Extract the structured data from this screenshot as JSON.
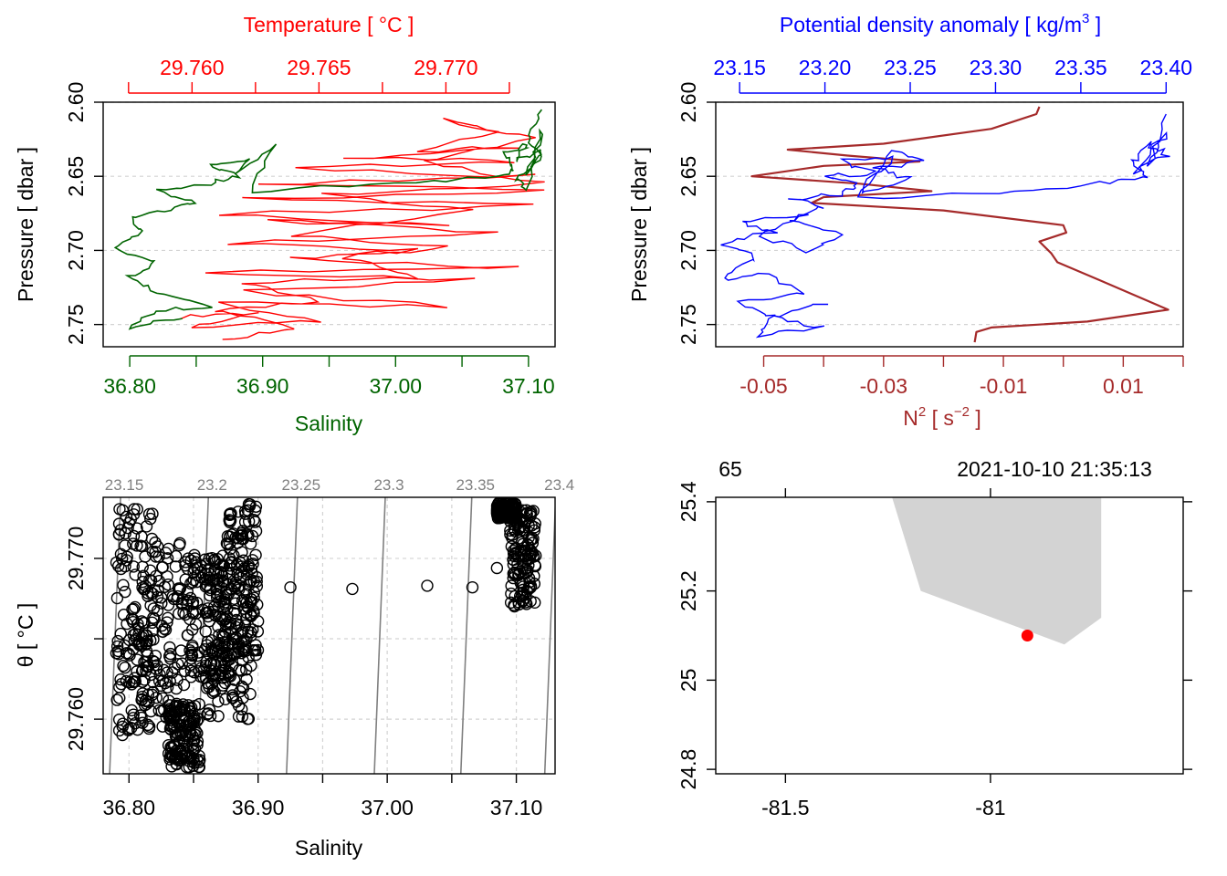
{
  "colors": {
    "temperature": "#ff0000",
    "salinity": "#006400",
    "density": "#0000ff",
    "n2": "#a52a2a",
    "land": "#d3d3d3",
    "station": "#ff0000",
    "isopycnal": "#808080",
    "grid": "#d3d3d3"
  },
  "chart_data": [
    {
      "id": "ts_profile",
      "type": "line",
      "title": "Temperature [ °C ]",
      "xlabel": "Salinity",
      "ylabel": "Pressure [ dbar ]",
      "ylim": [
        2.765,
        2.6
      ],
      "x_range": [
        36.78,
        37.12
      ],
      "x2_range": [
        29.7565,
        29.7743
      ],
      "y_ticks": [
        "2.60",
        "2.65",
        "2.70",
        "2.75"
      ],
      "x_ticks": [
        "36.80",
        "36.90",
        "37.00",
        "37.10"
      ],
      "x2_ticks": [
        "29.760",
        "29.765",
        "29.770"
      ],
      "series": [
        {
          "name": "Temperature",
          "axis": "top",
          "values": [
            [
              29.7595,
              2.745
            ],
            [
              29.7625,
              2.742
            ],
            [
              29.76,
              2.752
            ],
            [
              29.765,
              2.748
            ],
            [
              29.761,
              2.735
            ],
            [
              29.77,
              2.738
            ],
            [
              29.762,
              2.728
            ],
            [
              29.771,
              2.72
            ],
            [
              29.7605,
              2.715
            ],
            [
              29.773,
              2.712
            ],
            [
              29.764,
              2.705
            ],
            [
              29.769,
              2.7
            ],
            [
              29.7615,
              2.695
            ],
            [
              29.772,
              2.688
            ],
            [
              29.763,
              2.68
            ],
            [
              29.77,
              2.684
            ],
            [
              29.7612,
              2.675
            ],
            [
              29.7735,
              2.67
            ],
            [
              29.762,
              2.665
            ],
            [
              29.774,
              2.66
            ],
            [
              29.7625,
              2.655
            ],
            [
              29.7735,
              2.65
            ],
            [
              29.764,
              2.645
            ],
            [
              29.7728,
              2.64
            ],
            [
              29.766,
              2.638
            ],
            [
              29.773,
              2.63
            ],
            [
              29.769,
              2.633
            ],
            [
              29.772,
              2.62
            ],
            [
              29.77,
              2.612
            ],
            [
              29.7735,
              2.625
            ],
            [
              29.769,
              2.64
            ],
            [
              29.7738,
              2.655
            ],
            [
              29.765,
              2.662
            ],
            [
              29.771,
              2.672
            ],
            [
              29.764,
              2.69
            ],
            [
              29.77,
              2.698
            ],
            [
              29.766,
              2.705
            ],
            [
              29.769,
              2.718
            ],
            [
              29.762,
              2.722
            ],
            [
              29.765,
              2.735
            ],
            [
              29.7608,
              2.74
            ],
            [
              29.764,
              2.752
            ],
            [
              29.7612,
              2.76
            ]
          ]
        },
        {
          "name": "Salinity",
          "axis": "bottom",
          "values": [
            [
              36.84,
              2.745
            ],
            [
              36.8,
              2.752
            ],
            [
              36.82,
              2.74
            ],
            [
              36.86,
              2.738
            ],
            [
              36.82,
              2.728
            ],
            [
              36.8,
              2.718
            ],
            [
              36.82,
              2.708
            ],
            [
              36.79,
              2.698
            ],
            [
              36.81,
              2.688
            ],
            [
              36.8,
              2.678
            ],
            [
              36.83,
              2.672
            ],
            [
              36.85,
              2.668
            ],
            [
              36.82,
              2.66
            ],
            [
              36.86,
              2.655
            ],
            [
              36.88,
              2.65
            ],
            [
              36.86,
              2.642
            ],
            [
              36.89,
              2.638
            ],
            [
              36.88,
              2.648
            ],
            [
              36.91,
              2.628
            ],
            [
              36.89,
              2.66
            ],
            [
              37.0,
              2.655
            ],
            [
              37.08,
              2.65
            ],
            [
              37.09,
              2.645
            ],
            [
              37.08,
              2.635
            ],
            [
              37.1,
              2.628
            ],
            [
              37.09,
              2.64
            ],
            [
              37.11,
              2.632
            ],
            [
              37.1,
              2.648
            ],
            [
              37.11,
              2.618
            ],
            [
              37.1,
              2.658
            ],
            [
              37.09,
              2.652
            ],
            [
              37.11,
              2.638
            ],
            [
              37.1,
              2.625
            ],
            [
              37.11,
              2.605
            ]
          ]
        }
      ]
    },
    {
      "id": "density_n2",
      "type": "line",
      "title": "Potential density anomaly [ kg/m^3 ]",
      "xlabel": "N^2 [ s^-2 ]",
      "ylabel": "Pressure [ dbar ]",
      "ylim": [
        2.765,
        2.6
      ],
      "x_range": [
        -0.058,
        0.02
      ],
      "x2_range": [
        23.136,
        23.41
      ],
      "y_ticks": [
        "2.60",
        "2.65",
        "2.70",
        "2.75"
      ],
      "x_ticks": [
        "-0.05",
        "-0.03",
        "-0.01",
        "0.01"
      ],
      "x2_ticks": [
        "23.15",
        "23.20",
        "23.25",
        "23.30",
        "23.35",
        "23.40"
      ],
      "series": [
        {
          "name": "Potential density anomaly",
          "axis": "top",
          "values": [
            [
              23.2,
              2.735
            ],
            [
              23.17,
              2.745
            ],
            [
              23.2,
              2.752
            ],
            [
              23.16,
              2.758
            ],
            [
              23.17,
              2.745
            ],
            [
              23.15,
              2.735
            ],
            [
              23.19,
              2.728
            ],
            [
              23.16,
              2.715
            ],
            [
              23.14,
              2.72
            ],
            [
              23.16,
              2.705
            ],
            [
              23.14,
              2.695
            ],
            [
              23.17,
              2.688
            ],
            [
              23.15,
              2.68
            ],
            [
              23.19,
              2.675
            ],
            [
              23.16,
              2.69
            ],
            [
              23.19,
              2.7
            ],
            [
              23.21,
              2.69
            ],
            [
              23.18,
              2.68
            ],
            [
              23.2,
              2.67
            ],
            [
              23.18,
              2.665
            ],
            [
              23.21,
              2.662
            ],
            [
              23.22,
              2.655
            ],
            [
              23.2,
              2.65
            ],
            [
              23.23,
              2.648
            ],
            [
              23.21,
              2.64
            ],
            [
              23.24,
              2.638
            ],
            [
              23.22,
              2.66
            ],
            [
              23.25,
              2.652
            ],
            [
              23.23,
              2.645
            ],
            [
              23.26,
              2.64
            ],
            [
              23.24,
              2.632
            ],
            [
              23.22,
              2.665
            ],
            [
              23.3,
              2.662
            ],
            [
              23.36,
              2.655
            ],
            [
              23.39,
              2.65
            ],
            [
              23.38,
              2.64
            ],
            [
              23.39,
              2.628
            ],
            [
              23.4,
              2.635
            ],
            [
              23.38,
              2.648
            ],
            [
              23.4,
              2.62
            ],
            [
              23.39,
              2.642
            ],
            [
              23.4,
              2.608
            ]
          ]
        },
        {
          "name": "N2",
          "axis": "bottom",
          "values": [
            [
              -0.004,
              2.603
            ],
            [
              -0.0045,
              2.608
            ],
            [
              -0.012,
              2.618
            ],
            [
              -0.03,
              2.628
            ],
            [
              -0.046,
              2.632
            ],
            [
              -0.036,
              2.636
            ],
            [
              -0.024,
              2.64
            ],
            [
              -0.04,
              2.643
            ],
            [
              -0.052,
              2.65
            ],
            [
              -0.034,
              2.655
            ],
            [
              -0.022,
              2.66
            ],
            [
              -0.04,
              2.664
            ],
            [
              -0.042,
              2.668
            ],
            [
              -0.02,
              2.673
            ],
            [
              0.0,
              2.683
            ],
            [
              0.0005,
              2.688
            ],
            [
              -0.004,
              2.694
            ],
            [
              -0.002,
              2.702
            ],
            [
              -0.001,
              2.708
            ],
            [
              0.006,
              2.72
            ],
            [
              0.0175,
              2.74
            ],
            [
              0.004,
              2.748
            ],
            [
              -0.012,
              2.752
            ],
            [
              -0.0145,
              2.755
            ],
            [
              -0.0148,
              2.762
            ]
          ]
        }
      ]
    },
    {
      "id": "ts_diagram",
      "type": "scatter",
      "title": "",
      "xlabel": "Salinity",
      "ylabel": "θ [ °C ]",
      "xlim": [
        36.78,
        37.13
      ],
      "ylim": [
        29.7566,
        29.7738
      ],
      "x_ticks": [
        "36.80",
        "36.90",
        "37.00",
        "37.10"
      ],
      "y_ticks": [
        "29.760",
        "29.770"
      ],
      "isopycnal_labels": [
        "23.15",
        "23.2",
        "23.25",
        "23.3",
        "23.35",
        "23.4"
      ],
      "isopycnal_bottom_salinity": [
        36.785,
        36.853,
        36.922,
        36.99,
        37.057,
        37.122
      ],
      "clusters": [
        {
          "s": [
            36.79,
            36.82
          ],
          "t": [
            29.759,
            29.7732
          ]
        },
        {
          "s": [
            36.81,
            36.845
          ],
          "t": [
            29.7595,
            29.771
          ]
        },
        {
          "s": [
            36.83,
            36.855
          ],
          "t": [
            29.757,
            29.761
          ]
        },
        {
          "s": [
            36.845,
            36.875
          ],
          "t": [
            29.7625,
            29.7705
          ]
        },
        {
          "s": [
            36.86,
            36.895
          ],
          "t": [
            29.76,
            29.77
          ]
        },
        {
          "s": [
            36.875,
            36.9
          ],
          "t": [
            29.764,
            29.7735
          ]
        },
        {
          "s": [
            37.085,
            37.1
          ],
          "t": [
            29.7725,
            29.7735
          ]
        },
        {
          "s": [
            37.095,
            37.115
          ],
          "t": [
            29.767,
            29.773
          ]
        }
      ],
      "points": [
        [
          36.925,
          29.7682
        ],
        [
          36.973,
          29.7681
        ],
        [
          37.031,
          29.7683
        ],
        [
          37.066,
          29.7682
        ],
        [
          37.085,
          29.7694
        ]
      ]
    },
    {
      "id": "map",
      "type": "map",
      "x_ticks": [
        "-81.5",
        "-81"
      ],
      "y_ticks": [
        "25.4",
        "25.2",
        "25",
        "24.8"
      ],
      "xlim": [
        -81.67,
        -80.53
      ],
      "ylim": [
        24.79,
        25.41
      ],
      "top_labels": [
        "65",
        "2021-10-10 21:35:13"
      ],
      "land_polygon": [
        [
          -81.24,
          25.41
        ],
        [
          -81.17,
          25.2
        ],
        [
          -80.82,
          25.08
        ],
        [
          -80.73,
          25.14
        ],
        [
          -80.73,
          25.41
        ]
      ],
      "station": [
        -80.91,
        25.1
      ]
    }
  ]
}
